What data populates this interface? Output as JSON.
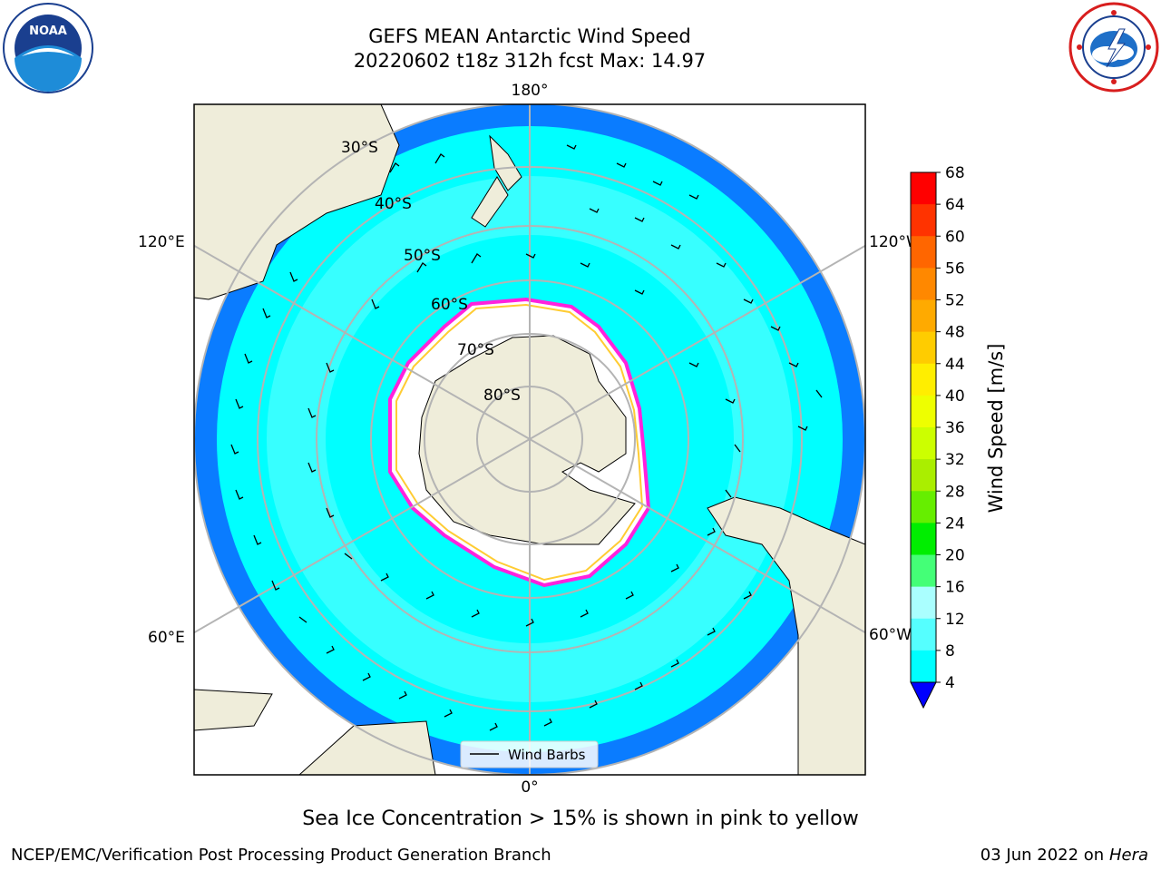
{
  "header": {
    "title_line1": "GEFS MEAN Antarctic Wind Speed",
    "title_line2": "20220602 t18z 312h fcst   Max: 14.97"
  },
  "logos": {
    "left": {
      "text": "NOAA",
      "icon": "noaa-logo"
    },
    "right": {
      "icon": "nws-logo"
    }
  },
  "map": {
    "projection": "south-polar-stereographic",
    "longitude_labels": [
      "180°",
      "120°E",
      "120°W",
      "60°E",
      "60°W",
      "0°"
    ],
    "latitude_labels": [
      "30°S",
      "40°S",
      "50°S",
      "60°S",
      "70°S",
      "80°S"
    ],
    "colors": {
      "ocean_outer": "#0a7cff",
      "ocean_mid": "#00ffff",
      "ocean_inner": "#55ffff",
      "sea_ice": "#ffffff",
      "land": "#efedda",
      "ice_edge": "#ff22dd"
    },
    "legend": {
      "label": "Wind Barbs"
    }
  },
  "colorbar": {
    "label": "Wind Speed [m/s]",
    "ticks": [
      "68",
      "64",
      "60",
      "56",
      "52",
      "48",
      "44",
      "40",
      "36",
      "32",
      "28",
      "24",
      "20",
      "16",
      "12",
      "8",
      "4"
    ],
    "colors": [
      "#ff0000",
      "#ff3300",
      "#ff6600",
      "#ff8800",
      "#ffaa00",
      "#ffcc00",
      "#ffee00",
      "#eeff00",
      "#ccff00",
      "#aaee00",
      "#66ee00",
      "#00ee00",
      "#44ff77",
      "#aaffff",
      "#55ffff",
      "#00ffff",
      "#0077ff"
    ],
    "under_color": "#0000ff"
  },
  "footer": {
    "note": "Sea Ice Concentration > 15% is shown in pink to yellow",
    "credit": "NCEP/EMC/Verification Post Processing Product Generation Branch",
    "date": "03 Jun 2022 on",
    "machine": "Hera"
  }
}
